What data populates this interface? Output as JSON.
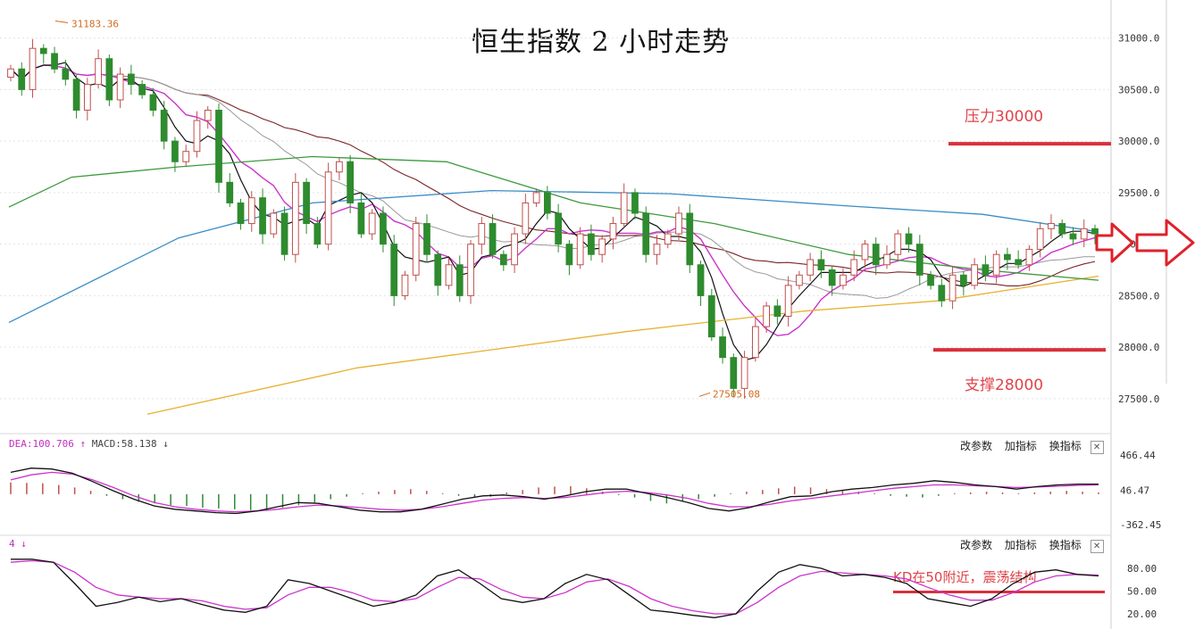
{
  "title": "恒生指数 2 小时走势",
  "annotations": {
    "resistance": "压力30000",
    "support": "支撑28000",
    "kd_note": "KD在50附近，震荡结构",
    "high_label": "31183.36",
    "low_label": "27505.08"
  },
  "macd_panel": {
    "dea": "DEA:100.706",
    "macd": "MACD:58.138",
    "tools": [
      "改参数",
      "加指标",
      "换指标"
    ],
    "close": "✕",
    "ticks": [
      "466.44",
      "46.47",
      "-362.45"
    ]
  },
  "kd_panel": {
    "label": "4",
    "tools": [
      "改参数",
      "加指标",
      "换指标"
    ],
    "close": "✕",
    "ticks": [
      "80.00",
      "50.00",
      "20.00"
    ]
  },
  "colors": {
    "up": "#c0504d",
    "down": "#2e8b2e",
    "resistance": "#d9303a",
    "ma250": "#e8b030",
    "ma120": "#3a8cc6",
    "ma60": "#3c9a3c",
    "ma_brown": "#7a2525",
    "k": "#111111",
    "d": "#cc33cc"
  },
  "chart_data": [
    {
      "type": "candlestick",
      "title": "恒生指数 2 小时走势",
      "ylim": [
        27300,
        31300
      ],
      "yticks": [
        "31000.0",
        "30500.0",
        "30000.0",
        "29500.0",
        "29000.0",
        "28500.0",
        "28000.0",
        "27500.0"
      ],
      "levels": {
        "resistance": 30000,
        "support": 28000
      },
      "high": 31183.36,
      "low": 27505.08,
      "close_path": [
        30700,
        30500,
        30900,
        30850,
        30700,
        30600,
        30300,
        30550,
        30800,
        30400,
        30650,
        30550,
        30450,
        30300,
        30000,
        29800,
        29900,
        30200,
        30300,
        29600,
        29400,
        29200,
        29450,
        29100,
        29300,
        28900,
        29600,
        29200,
        29000,
        29700,
        29800,
        29400,
        29100,
        29300,
        29000,
        28500,
        28700,
        29200,
        28900,
        28600,
        28800,
        28500,
        29000,
        29200,
        28900,
        28800,
        29100,
        29400,
        29500,
        29300,
        29000,
        28800,
        29100,
        28900,
        29050,
        29200,
        29500,
        29300,
        28900,
        29000,
        29100,
        29300,
        28800,
        28500,
        28100,
        27900,
        27600,
        27900,
        28200,
        28400,
        28300,
        28600,
        28700,
        28850,
        28750,
        28600,
        28700,
        28850,
        29000,
        28800,
        28900,
        29100,
        29000,
        28700,
        28600,
        28450,
        28700,
        28600,
        28800,
        28700,
        28900,
        28850,
        28800,
        28950,
        29150,
        29200,
        29100,
        29050,
        29150,
        29100
      ],
      "ma_lines": {
        "MA250": [
          [
            165,
            27350
          ],
          [
            400,
            27800
          ],
          [
            700,
            28150
          ],
          [
            900,
            28350
          ],
          [
            1050,
            28450
          ],
          [
            1230,
            28690
          ]
        ],
        "MA120": [
          [
            10,
            28240
          ],
          [
            200,
            29060
          ],
          [
            350,
            29400
          ],
          [
            550,
            29520
          ],
          [
            750,
            29490
          ],
          [
            950,
            29370
          ],
          [
            1100,
            29290
          ],
          [
            1230,
            29120
          ]
        ],
        "MA60": [
          [
            10,
            29360
          ],
          [
            80,
            29650
          ],
          [
            200,
            29750
          ],
          [
            350,
            29850
          ],
          [
            500,
            29800
          ],
          [
            650,
            29400
          ],
          [
            800,
            29200
          ],
          [
            950,
            28900
          ],
          [
            1100,
            28750
          ],
          [
            1230,
            28650
          ]
        ]
      }
    },
    {
      "type": "bar+line",
      "name": "MACD",
      "dea": 100.706,
      "macd": 58.138,
      "ylim": [
        -362.45,
        466.44
      ],
      "histogram": [
        140,
        135,
        130,
        110,
        80,
        40,
        -20,
        -60,
        -90,
        -110,
        -130,
        -140,
        -160,
        -170,
        -180,
        -190,
        -200,
        -160,
        -130,
        -100,
        -60,
        -30,
        10,
        30,
        50,
        60,
        40,
        10,
        -20,
        -40,
        -30,
        20,
        50,
        80,
        90,
        95,
        70,
        30,
        -10,
        -40,
        -80,
        -110,
        -90,
        -60,
        -30,
        10,
        30,
        50,
        70,
        90,
        80,
        60,
        40,
        30,
        10,
        -20,
        -30,
        -40,
        -20,
        10,
        20,
        30,
        20,
        10,
        20,
        30,
        40,
        30,
        20
      ],
      "dif": [
        260,
        310,
        300,
        250,
        150,
        40,
        -60,
        -140,
        -180,
        -200,
        -220,
        -230,
        -200,
        -150,
        -100,
        -110,
        -150,
        -190,
        -210,
        -210,
        -180,
        -120,
        -60,
        -20,
        -10,
        -30,
        -60,
        -20,
        30,
        60,
        60,
        10,
        -40,
        -100,
        -170,
        -200,
        -160,
        -90,
        -30,
        -20,
        30,
        60,
        80,
        110,
        130,
        160,
        140,
        110,
        90,
        60,
        90,
        110,
        120,
        120
      ],
      "dea_line": [
        170,
        230,
        260,
        240,
        170,
        80,
        -20,
        -100,
        -150,
        -180,
        -200,
        -210,
        -200,
        -180,
        -150,
        -130,
        -140,
        -160,
        -180,
        -190,
        -180,
        -150,
        -110,
        -70,
        -50,
        -40,
        -50,
        -40,
        -10,
        20,
        35,
        20,
        -10,
        -50,
        -110,
        -150,
        -150,
        -120,
        -80,
        -50,
        -20,
        10,
        40,
        70,
        90,
        110,
        110,
        100,
        90,
        80,
        85,
        95,
        105,
        110
      ]
    },
    {
      "type": "line",
      "name": "KD",
      "ylim": [
        0,
        100
      ],
      "yticks": [
        "80.00",
        "50.00",
        "20.00"
      ],
      "level": 50,
      "k": [
        92,
        92,
        88,
        60,
        30,
        35,
        42,
        36,
        40,
        32,
        25,
        22,
        30,
        65,
        60,
        50,
        40,
        30,
        35,
        45,
        70,
        78,
        60,
        40,
        35,
        40,
        60,
        72,
        65,
        45,
        25,
        22,
        18,
        15,
        20,
        50,
        75,
        85,
        80,
        70,
        72,
        68,
        60,
        40,
        35,
        30,
        40,
        60,
        75,
        78,
        72,
        70
      ],
      "d": [
        88,
        90,
        88,
        75,
        55,
        45,
        42,
        40,
        40,
        37,
        30,
        26,
        28,
        45,
        55,
        55,
        48,
        38,
        36,
        40,
        55,
        68,
        66,
        52,
        42,
        40,
        48,
        62,
        66,
        56,
        40,
        30,
        24,
        20,
        20,
        35,
        55,
        70,
        76,
        74,
        72,
        70,
        66,
        55,
        45,
        38,
        38,
        48,
        62,
        70,
        72,
        71
      ]
    }
  ]
}
